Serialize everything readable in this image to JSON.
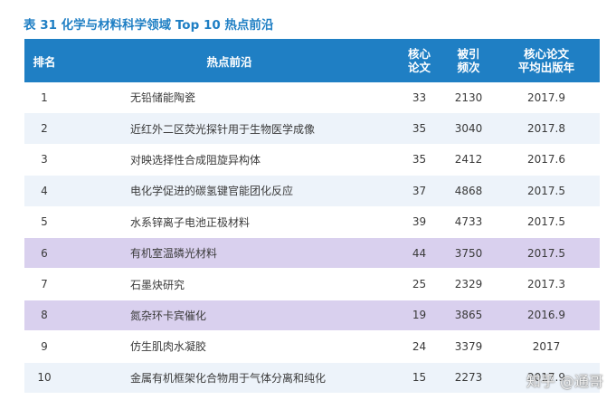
{
  "caption": "表 31  化学与材料科学领域 Top 10 热点前沿",
  "headers": {
    "rank": "排名",
    "topic": "热点前沿",
    "papers_l1": "核心",
    "papers_l2": "论文",
    "cites_l1": "被引",
    "cites_l2": "频次",
    "year_l1": "核心论文",
    "year_l2": "平均出版年"
  },
  "rows": [
    {
      "rank": "1",
      "topic": "无铅储能陶瓷",
      "papers": "33",
      "cites": "2130",
      "year": "2017.9",
      "style": "odd"
    },
    {
      "rank": "2",
      "topic": "近红外二区荧光探针用于生物医学成像",
      "papers": "35",
      "cites": "3040",
      "year": "2017.8",
      "style": "even"
    },
    {
      "rank": "3",
      "topic": "对映选择性合成阻旋异构体",
      "papers": "35",
      "cites": "2412",
      "year": "2017.6",
      "style": "odd"
    },
    {
      "rank": "4",
      "topic": "电化学促进的碳氢键官能团化反应",
      "papers": "37",
      "cites": "4868",
      "year": "2017.5",
      "style": "even"
    },
    {
      "rank": "5",
      "topic": "水系锌离子电池正极材料",
      "papers": "39",
      "cites": "4733",
      "year": "2017.5",
      "style": "odd"
    },
    {
      "rank": "6",
      "topic": "有机室温磷光材料",
      "papers": "44",
      "cites": "3750",
      "year": "2017.5",
      "style": "hl"
    },
    {
      "rank": "7",
      "topic": "石墨炔研究",
      "papers": "25",
      "cites": "2329",
      "year": "2017.3",
      "style": "odd"
    },
    {
      "rank": "8",
      "topic": "氮杂环卡宾催化",
      "papers": "19",
      "cites": "3865",
      "year": "2016.9",
      "style": "hl"
    },
    {
      "rank": "9",
      "topic": "仿生肌肉水凝胶",
      "papers": "24",
      "cites": "3379",
      "year": "2017",
      "style": "odd"
    },
    {
      "rank": "10",
      "topic": "金属有机框架化合物用于气体分离和纯化",
      "papers": "15",
      "cites": "2273",
      "year": "2017.9",
      "style": "even"
    }
  ],
  "watermark": "知乎 @通哥"
}
